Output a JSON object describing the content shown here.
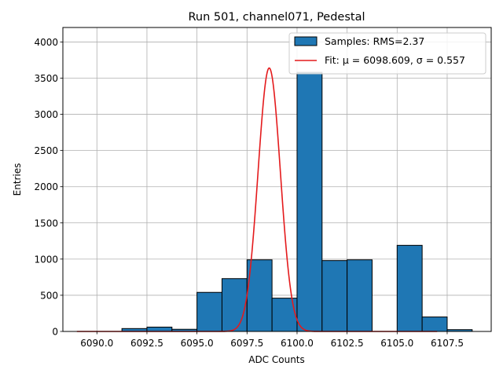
{
  "chart_data": {
    "type": "bar",
    "title": "Run 501, channel071, Pedestal",
    "xlabel": "ADC Counts",
    "ylabel": "Entries",
    "xlim": [
      6088.3,
      6109.7
    ],
    "ylim": [
      0,
      4200
    ],
    "x_ticks": [
      "6090.0",
      "6092.5",
      "6095.0",
      "6097.5",
      "6100.0",
      "6102.5",
      "6105.0",
      "6107.5"
    ],
    "y_ticks": [
      "0",
      "500",
      "1000",
      "1500",
      "2000",
      "2500",
      "3000",
      "3500",
      "4000"
    ],
    "grid": true,
    "legend_position": "top-right",
    "histogram": {
      "name": "Samples: RMS=2.37",
      "color": "#1f77b4",
      "edge_color": "#000000",
      "bins": [
        {
          "x0": 6090.0,
          "x1": 6091.25,
          "count": 0
        },
        {
          "x0": 6091.25,
          "x1": 6092.5,
          "count": 40
        },
        {
          "x0": 6092.5,
          "x1": 6093.75,
          "count": 60
        },
        {
          "x0": 6093.75,
          "x1": 6095.0,
          "count": 30
        },
        {
          "x0": 6095.0,
          "x1": 6096.25,
          "count": 540
        },
        {
          "x0": 6096.25,
          "x1": 6097.5,
          "count": 730
        },
        {
          "x0": 6097.5,
          "x1": 6098.75,
          "count": 990
        },
        {
          "x0": 6098.75,
          "x1": 6100.0,
          "count": 460
        },
        {
          "x0": 6100.0,
          "x1": 6101.25,
          "count": 3580
        },
        {
          "x0": 6101.25,
          "x1": 6102.5,
          "count": 980
        },
        {
          "x0": 6102.5,
          "x1": 6103.75,
          "count": 990
        },
        {
          "x0": 6103.75,
          "x1": 6105.0,
          "count": 0
        },
        {
          "x0": 6105.0,
          "x1": 6106.25,
          "count": 1190
        },
        {
          "x0": 6106.25,
          "x1": 6107.5,
          "count": 200
        },
        {
          "x0": 6107.5,
          "x1": 6108.75,
          "count": 25
        }
      ]
    },
    "fit": {
      "name": "Fit: μ = 6098.609, σ = 0.557",
      "color": "#e41a1c",
      "mu": 6098.609,
      "sigma": 0.557,
      "amplitude": 3640,
      "x_range": [
        6089.0,
        6107.0
      ]
    }
  }
}
